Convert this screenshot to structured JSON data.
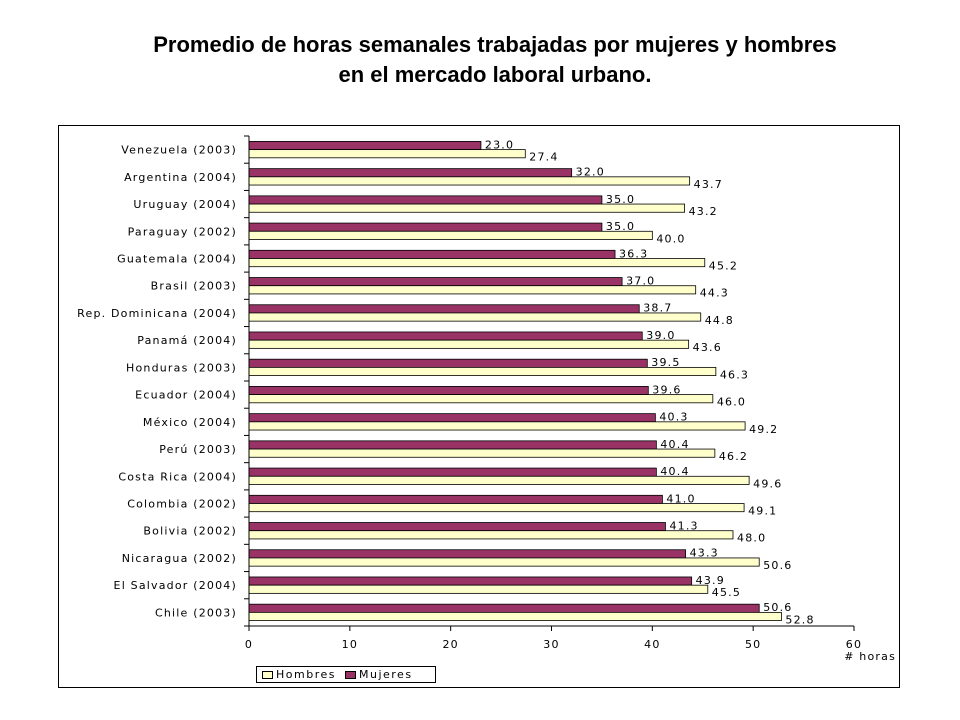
{
  "title": {
    "line1": "Promedio de horas semanales trabajadas por mujeres y hombres",
    "line2": "en el mercado laboral urbano."
  },
  "chart_data": {
    "type": "bar",
    "orientation": "horizontal",
    "categories": [
      "Venezuela (2003)",
      "Argentina (2004)",
      "Uruguay (2004)",
      "Paraguay (2002)",
      "Guatemala (2004)",
      "Brasil (2003)",
      "Rep. Dominicana (2004)",
      "Panamá (2004)",
      "Honduras (2003)",
      "Ecuador (2004)",
      "México (2004)",
      "Perú (2003)",
      "Costa Rica (2004)",
      "Colombia (2002)",
      "Bolivia (2002)",
      "Nicaragua (2002)",
      "El Salvador (2004)",
      "Chile (2003)"
    ],
    "series": [
      {
        "name": "Mujeres",
        "color": "#993366",
        "values": [
          23.0,
          32.0,
          35.0,
          35.0,
          36.3,
          37.0,
          38.7,
          39.0,
          39.5,
          39.6,
          40.3,
          40.4,
          40.4,
          41.0,
          41.3,
          43.3,
          43.9,
          50.6
        ],
        "labels": [
          "23.0",
          "32.0",
          "35.0",
          "35.0",
          "36.3",
          "37.0",
          "38.7",
          "39.0",
          "39.5",
          "39.6",
          "40.3",
          "40.4",
          "40.4",
          "41.0",
          "41.3",
          "43.3",
          "43.9",
          "50.6"
        ]
      },
      {
        "name": "Hombres",
        "color": "#FFFFCC",
        "values": [
          27.4,
          43.7,
          43.2,
          40.0,
          45.2,
          44.3,
          44.8,
          43.6,
          46.3,
          46.0,
          49.2,
          46.2,
          49.6,
          49.1,
          48.0,
          50.6,
          45.5,
          52.8
        ],
        "labels": [
          "27.4",
          "43.7",
          "43.2",
          "40.0",
          "45.2",
          "44.3",
          "44.8",
          "43.6",
          "46.3",
          "46.0",
          "49.2",
          "46.2",
          "49.6",
          "49.1",
          "48.0",
          "50.6",
          "45.5",
          "52.8"
        ]
      }
    ],
    "xlim": [
      0,
      60
    ],
    "xticks": [
      "0",
      "10",
      "20",
      "30",
      "40",
      "50",
      "60"
    ],
    "xlabel": "# horas",
    "ylabel": "",
    "grid": false,
    "legend": {
      "placement": "bottom",
      "entries": [
        "Hombres",
        "Mujeres"
      ]
    }
  }
}
